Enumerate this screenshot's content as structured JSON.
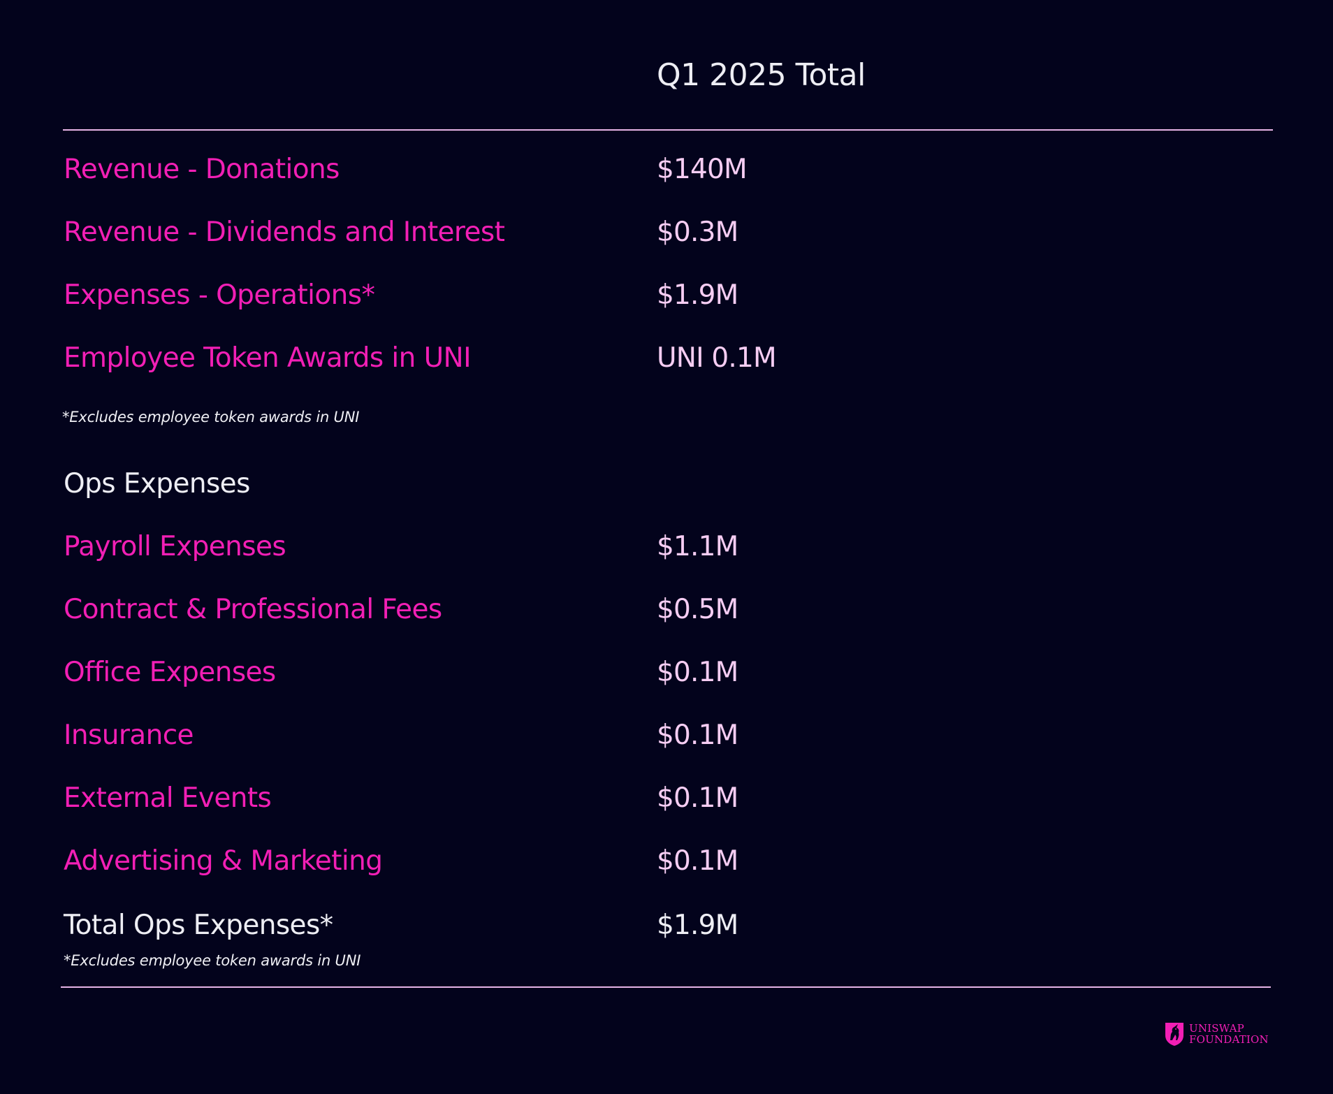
{
  "header": {
    "title": "Q1 2025 Total"
  },
  "summary_rows": [
    {
      "label": "Revenue - Donations",
      "value": "$140M"
    },
    {
      "label": "Revenue - Dividends and Interest",
      "value": "$0.3M"
    },
    {
      "label": "Expenses - Operations*",
      "value": "$1.9M"
    },
    {
      "label": "Employee Token Awards in UNI",
      "value": "UNI 0.1M"
    }
  ],
  "summary_note": "*Excludes employee token awards in UNI",
  "ops": {
    "title": "Ops Expenses",
    "rows": [
      {
        "label": "Payroll Expenses",
        "value": "$1.1M"
      },
      {
        "label": "Contract & Professional Fees",
        "value": "$0.5M"
      },
      {
        "label": "Office Expenses",
        "value": "$0.1M"
      },
      {
        "label": "Insurance",
        "value": "$0.1M"
      },
      {
        "label": "External Events",
        "value": "$0.1M"
      },
      {
        "label": "Advertising & Marketing",
        "value": "$0.1M"
      }
    ],
    "total": {
      "label": "Total Ops Expenses*",
      "value": "$1.9M"
    },
    "note": "*Excludes employee token awards in UNI"
  },
  "logo": {
    "line1": "UNISWAP",
    "line2": "FOUNDATION",
    "icon": "unicorn-crest-icon"
  },
  "colors": {
    "background": "#03031c",
    "accent": "#f21fb5",
    "value": "#f6cdf3",
    "rule": "#e6b4e6"
  }
}
